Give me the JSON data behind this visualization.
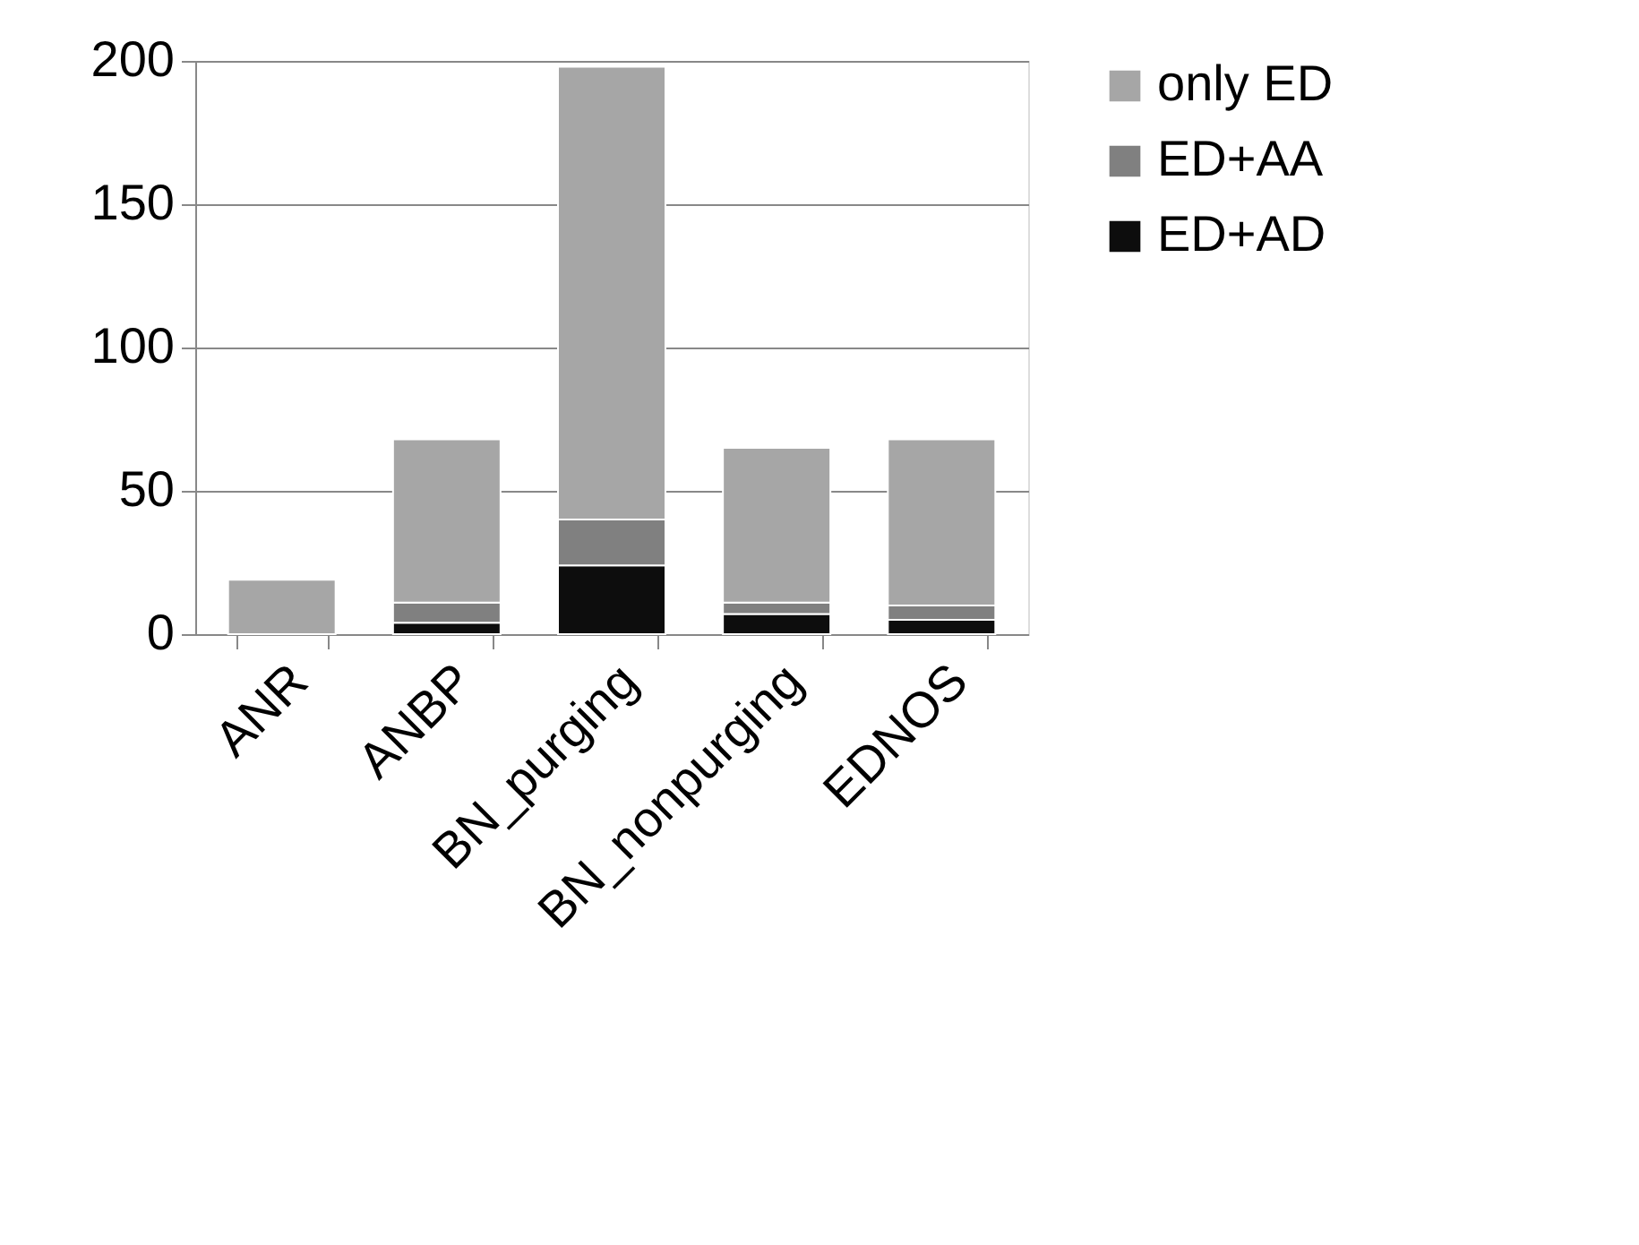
{
  "chart_data": {
    "type": "bar",
    "stacked": true,
    "categories": [
      "ANR",
      "ANBP",
      "BN_purging",
      "BN_nonpurging",
      "EDNOS"
    ],
    "series": [
      {
        "name": "ED+AD",
        "color": "#0d0d0d",
        "values": [
          0,
          4,
          24,
          7,
          5
        ]
      },
      {
        "name": "ED+AA",
        "color": "#808080",
        "values": [
          0,
          7,
          16,
          4,
          5
        ]
      },
      {
        "name": "only ED",
        "color": "#a6a6a6",
        "values": [
          19,
          57,
          158,
          54,
          58
        ]
      }
    ],
    "ylim": [
      0,
      200
    ],
    "yticks": [
      0,
      50,
      100,
      150,
      200
    ],
    "grid": "y",
    "legend": "right"
  }
}
